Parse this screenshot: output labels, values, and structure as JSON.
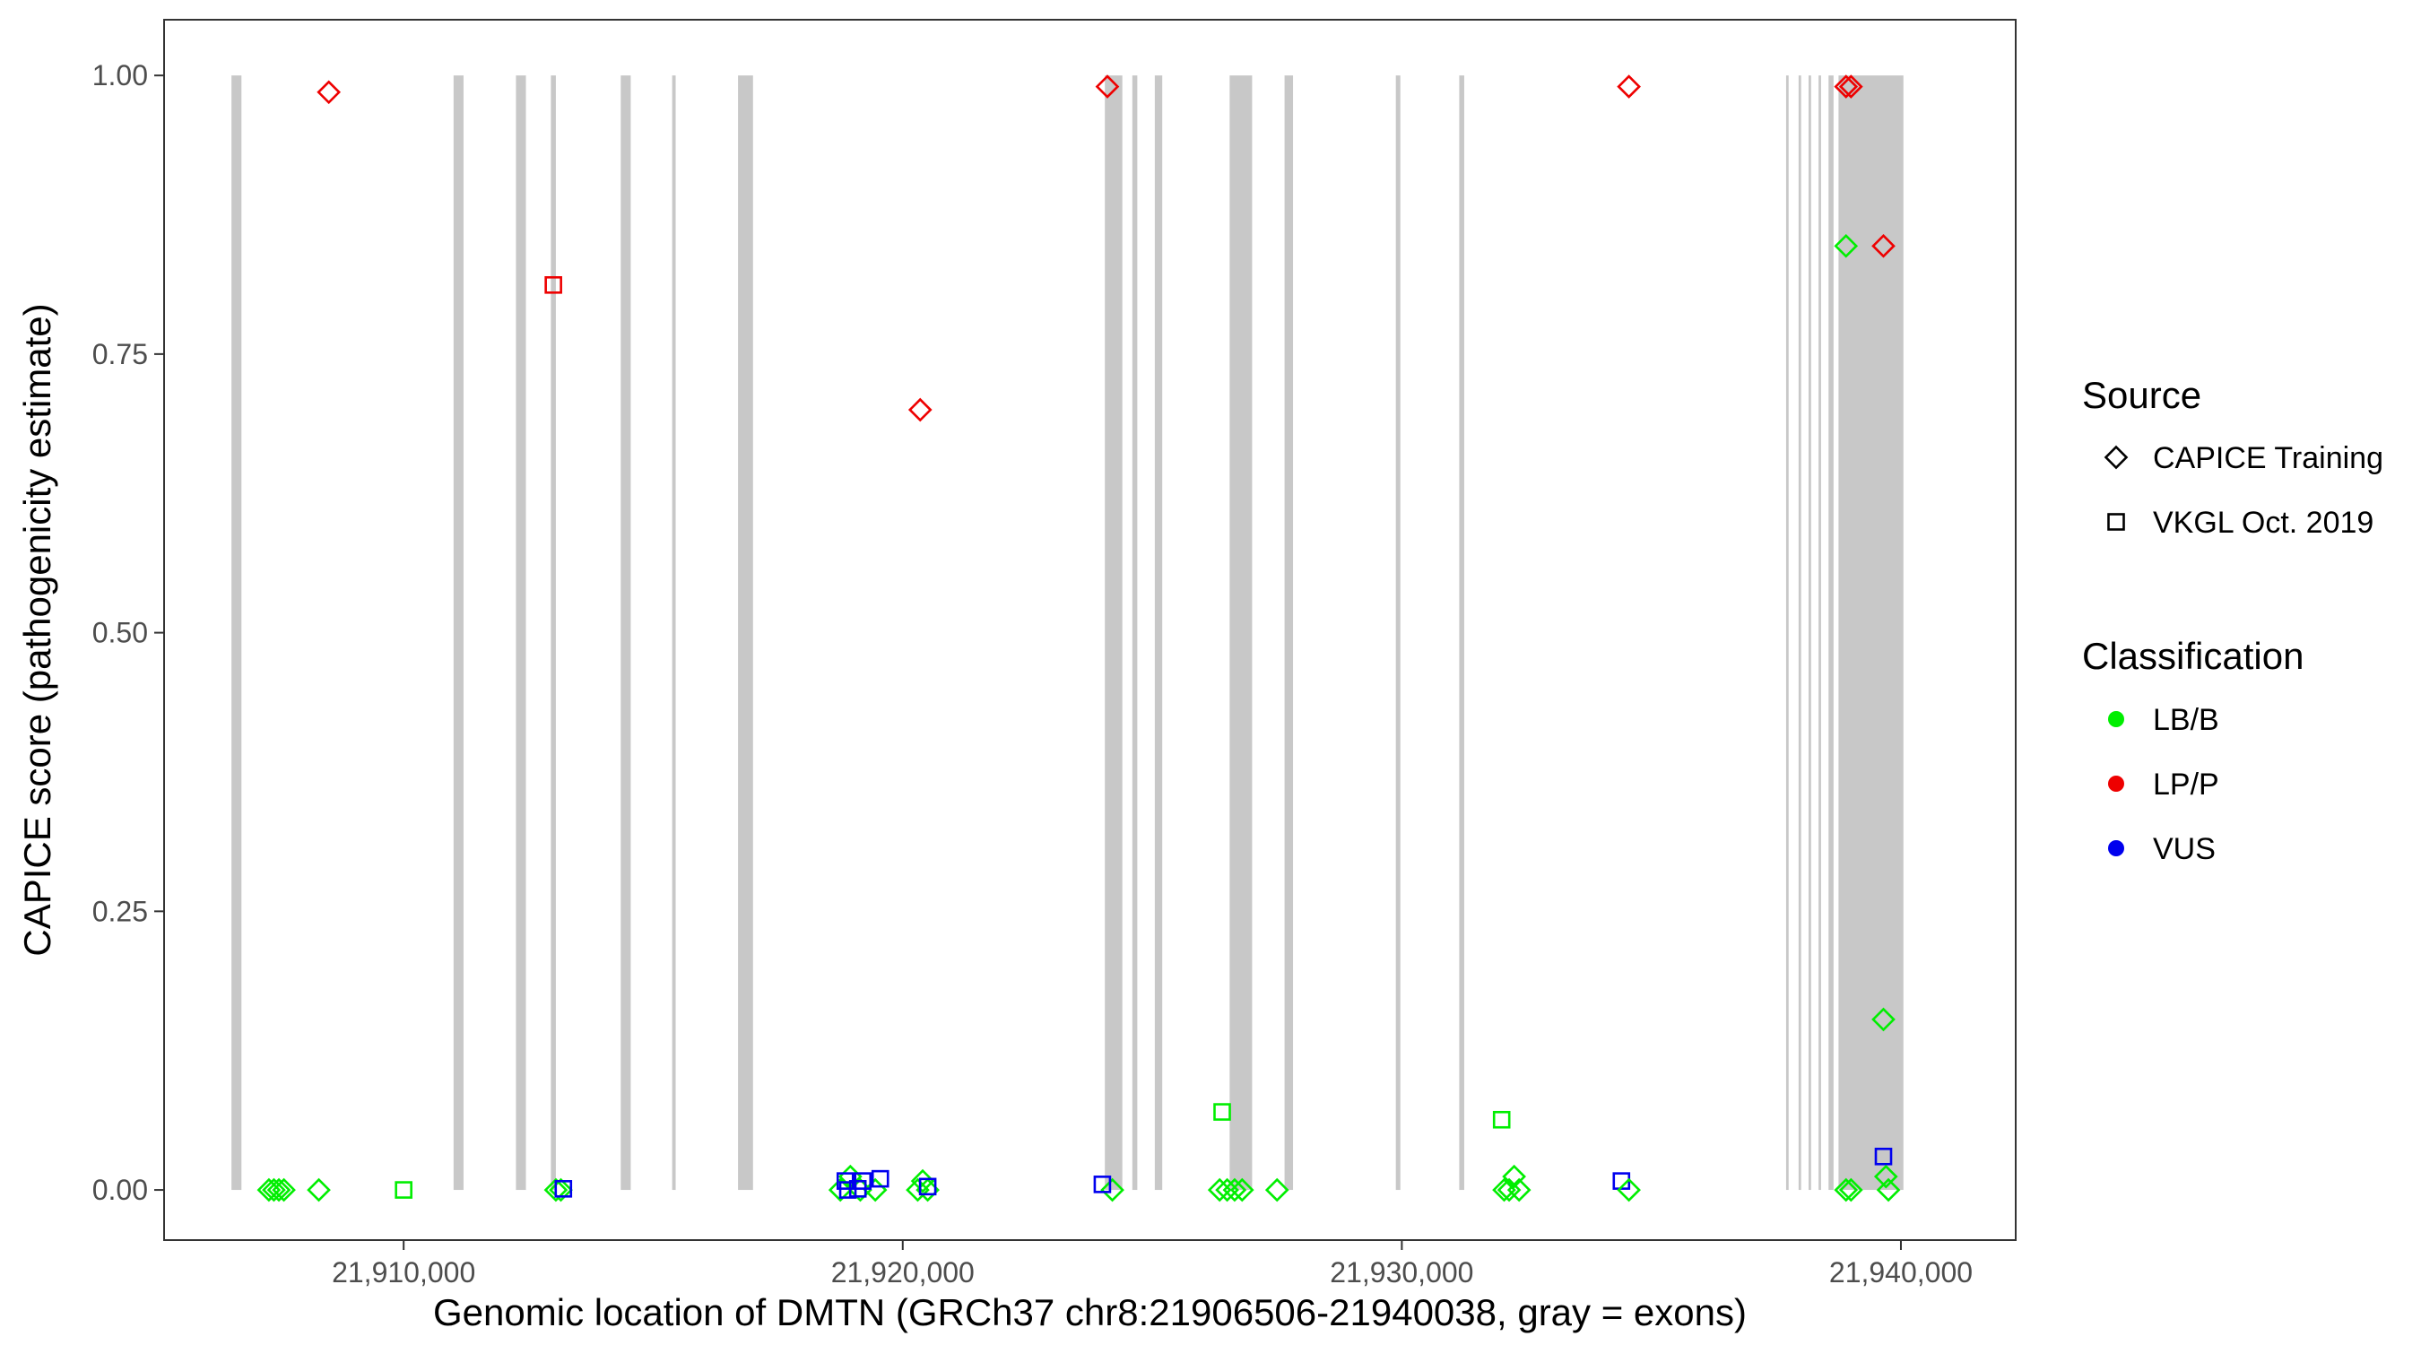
{
  "chart_data": {
    "type": "scatter",
    "title": "",
    "xlabel": "Genomic location of DMTN (GRCh37 chr8:21906506-21940038, gray = exons)",
    "ylabel": "CAPICE score (pathogenicity estimate)",
    "xlim": [
      21905200,
      21942300
    ],
    "ylim": [
      -0.045,
      1.05
    ],
    "x_ticks": [
      21910000,
      21920000,
      21930000,
      21940000
    ],
    "x_tick_labels": [
      "21,910,000",
      "21,920,000",
      "21,930,000",
      "21,940,000"
    ],
    "y_ticks": [
      0,
      0.25,
      0.5,
      0.75,
      1.0
    ],
    "y_tick_labels": [
      "0.00",
      "0.25",
      "0.50",
      "0.75",
      "1.00"
    ],
    "grid": false,
    "exon_color": "#c8c8c8",
    "exon_y_range": [
      0,
      1.0
    ],
    "exons": [
      [
        21906550,
        21906750
      ],
      [
        21911000,
        21911200
      ],
      [
        21912250,
        21912450
      ],
      [
        21912950,
        21913050
      ],
      [
        21914350,
        21914550
      ],
      [
        21915380,
        21915450
      ],
      [
        21916700,
        21917000
      ],
      [
        21924050,
        21924400
      ],
      [
        21924600,
        21924700
      ],
      [
        21925050,
        21925200
      ],
      [
        21926550,
        21927000
      ],
      [
        21927650,
        21927820
      ],
      [
        21929880,
        21929970
      ],
      [
        21931150,
        21931250
      ],
      [
        21937700,
        21937750
      ],
      [
        21937950,
        21938000
      ],
      [
        21938150,
        21938200
      ],
      [
        21938350,
        21938400
      ],
      [
        21938550,
        21938650
      ],
      [
        21938750,
        21940050
      ]
    ],
    "legend": {
      "position": "right",
      "source_title": "Source",
      "source_items": [
        {
          "label": "CAPICE Training",
          "shape": "diamond"
        },
        {
          "label": "VKGL Oct. 2019",
          "shape": "square"
        }
      ],
      "class_title": "Classification",
      "class_items": [
        {
          "label": "LB/B",
          "color": "#00ee00"
        },
        {
          "label": "LP/P",
          "color": "#ee0000"
        },
        {
          "label": "VUS",
          "color": "#0000ee"
        }
      ]
    },
    "points": [
      {
        "x": 21907300,
        "y": 0.0,
        "shape": "diamond",
        "cls": "LB/B"
      },
      {
        "x": 21907400,
        "y": 0.0,
        "shape": "diamond",
        "cls": "LB/B"
      },
      {
        "x": 21907500,
        "y": 0.0,
        "shape": "diamond",
        "cls": "LB/B"
      },
      {
        "x": 21907600,
        "y": 0.0,
        "shape": "diamond",
        "cls": "LB/B"
      },
      {
        "x": 21908300,
        "y": 0.0,
        "shape": "diamond",
        "cls": "LB/B"
      },
      {
        "x": 21908500,
        "y": 0.985,
        "shape": "diamond",
        "cls": "LP/P"
      },
      {
        "x": 21910000,
        "y": 0.0,
        "shape": "square",
        "cls": "LB/B"
      },
      {
        "x": 21913000,
        "y": 0.812,
        "shape": "square",
        "cls": "LP/P"
      },
      {
        "x": 21913050,
        "y": 0.0,
        "shape": "diamond",
        "cls": "LB/B"
      },
      {
        "x": 21913150,
        "y": 0.0,
        "shape": "diamond",
        "cls": "LB/B"
      },
      {
        "x": 21913200,
        "y": 0.001,
        "shape": "square",
        "cls": "VUS"
      },
      {
        "x": 21918750,
        "y": 0.0,
        "shape": "diamond",
        "cls": "LB/B"
      },
      {
        "x": 21918950,
        "y": 0.012,
        "shape": "diamond",
        "cls": "LB/B"
      },
      {
        "x": 21919150,
        "y": 0.0,
        "shape": "diamond",
        "cls": "LB/B"
      },
      {
        "x": 21919450,
        "y": 0.0,
        "shape": "diamond",
        "cls": "LB/B"
      },
      {
        "x": 21920400,
        "y": 0.008,
        "shape": "diamond",
        "cls": "LB/B"
      },
      {
        "x": 21920300,
        "y": 0.0,
        "shape": "diamond",
        "cls": "LB/B"
      },
      {
        "x": 21920500,
        "y": 0.0,
        "shape": "diamond",
        "cls": "LB/B"
      },
      {
        "x": 21918850,
        "y": 0.008,
        "shape": "square",
        "cls": "VUS"
      },
      {
        "x": 21918900,
        "y": 0.0,
        "shape": "square",
        "cls": "VUS"
      },
      {
        "x": 21919100,
        "y": 0.001,
        "shape": "square",
        "cls": "VUS"
      },
      {
        "x": 21919200,
        "y": 0.008,
        "shape": "square",
        "cls": "VUS"
      },
      {
        "x": 21919550,
        "y": 0.01,
        "shape": "square",
        "cls": "VUS"
      },
      {
        "x": 21920500,
        "y": 0.003,
        "shape": "square",
        "cls": "VUS"
      },
      {
        "x": 21920350,
        "y": 0.7,
        "shape": "diamond",
        "cls": "LP/P"
      },
      {
        "x": 21924100,
        "y": 0.99,
        "shape": "diamond",
        "cls": "LP/P"
      },
      {
        "x": 21924200,
        "y": 0.0,
        "shape": "diamond",
        "cls": "LB/B"
      },
      {
        "x": 21924000,
        "y": 0.005,
        "shape": "square",
        "cls": "VUS"
      },
      {
        "x": 21926400,
        "y": 0.07,
        "shape": "square",
        "cls": "LB/B"
      },
      {
        "x": 21926350,
        "y": 0.0,
        "shape": "diamond",
        "cls": "LB/B"
      },
      {
        "x": 21926500,
        "y": 0.0,
        "shape": "diamond",
        "cls": "LB/B"
      },
      {
        "x": 21926650,
        "y": 0.0,
        "shape": "diamond",
        "cls": "LB/B"
      },
      {
        "x": 21926800,
        "y": 0.0,
        "shape": "diamond",
        "cls": "LB/B"
      },
      {
        "x": 21927500,
        "y": 0.0,
        "shape": "diamond",
        "cls": "LB/B"
      },
      {
        "x": 21932000,
        "y": 0.063,
        "shape": "square",
        "cls": "LB/B"
      },
      {
        "x": 21932050,
        "y": 0.0,
        "shape": "diamond",
        "cls": "LB/B"
      },
      {
        "x": 21932150,
        "y": 0.0,
        "shape": "diamond",
        "cls": "LB/B"
      },
      {
        "x": 21932250,
        "y": 0.012,
        "shape": "diamond",
        "cls": "LB/B"
      },
      {
        "x": 21932350,
        "y": 0.0,
        "shape": "diamond",
        "cls": "LB/B"
      },
      {
        "x": 21934400,
        "y": 0.008,
        "shape": "square",
        "cls": "VUS"
      },
      {
        "x": 21934550,
        "y": 0.0,
        "shape": "diamond",
        "cls": "LB/B"
      },
      {
        "x": 21934550,
        "y": 0.99,
        "shape": "diamond",
        "cls": "LP/P"
      },
      {
        "x": 21938900,
        "y": 0.99,
        "shape": "diamond",
        "cls": "LP/P"
      },
      {
        "x": 21939000,
        "y": 0.99,
        "shape": "diamond",
        "cls": "LP/P"
      },
      {
        "x": 21938900,
        "y": 0.847,
        "shape": "diamond",
        "cls": "LB/B"
      },
      {
        "x": 21939650,
        "y": 0.847,
        "shape": "diamond",
        "cls": "LP/P"
      },
      {
        "x": 21939650,
        "y": 0.153,
        "shape": "diamond",
        "cls": "LB/B"
      },
      {
        "x": 21939650,
        "y": 0.03,
        "shape": "square",
        "cls": "VUS"
      },
      {
        "x": 21939700,
        "y": 0.012,
        "shape": "diamond",
        "cls": "LB/B"
      },
      {
        "x": 21938900,
        "y": 0.0,
        "shape": "diamond",
        "cls": "LB/B"
      },
      {
        "x": 21939000,
        "y": 0.0,
        "shape": "diamond",
        "cls": "LB/B"
      },
      {
        "x": 21939750,
        "y": 0.0,
        "shape": "diamond",
        "cls": "LB/B"
      }
    ]
  }
}
